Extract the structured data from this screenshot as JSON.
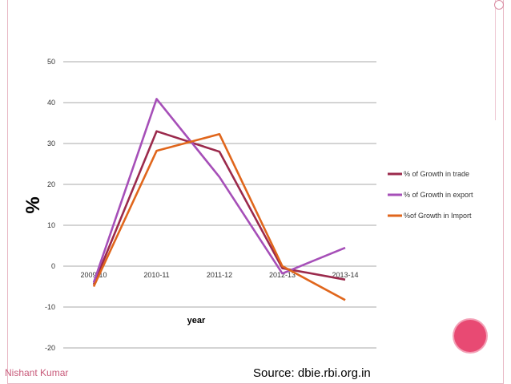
{
  "footer": {
    "author": "Nishant Kumar",
    "source": "Source: dbie.rbi.org.in"
  },
  "chart_data": {
    "type": "line",
    "xlabel": "year",
    "ylabel": "%",
    "ylim": [
      -20,
      50
    ],
    "yticks": [
      -20,
      -10,
      0,
      10,
      20,
      30,
      40,
      50
    ],
    "categories": [
      "2009-10",
      "2010-11",
      "2011-12",
      "2012-13",
      "2013-14"
    ],
    "grid": true,
    "legend_position": "right",
    "series": [
      {
        "name": "% of Growth in trade",
        "color": "#9b2a4c",
        "values": [
          -4.5,
          33.0,
          28.0,
          -0.5,
          -3.3
        ]
      },
      {
        "name": "% of Growth in export",
        "color": "#a64fb8",
        "values": [
          -4.0,
          40.9,
          21.8,
          -1.8,
          4.5
        ]
      },
      {
        "name": "%of Growth in Import",
        "color": "#e0661c",
        "values": [
          -5.0,
          28.2,
          32.3,
          0.0,
          -8.3
        ]
      }
    ]
  }
}
